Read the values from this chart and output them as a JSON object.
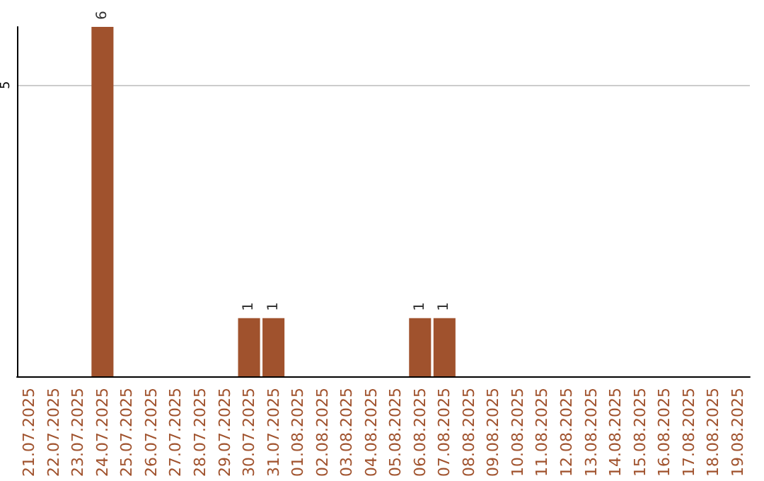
{
  "chart_data": {
    "type": "bar",
    "categories": [
      "21.07.2025",
      "22.07.2025",
      "23.07.2025",
      "24.07.2025",
      "25.07.2025",
      "26.07.2025",
      "27.07.2025",
      "28.07.2025",
      "29.07.2025",
      "30.07.2025",
      "31.07.2025",
      "01.08.2025",
      "02.08.2025",
      "03.08.2025",
      "04.08.2025",
      "05.08.2025",
      "06.08.2025",
      "07.08.2025",
      "08.08.2025",
      "09.08.2025",
      "10.08.2025",
      "11.08.2025",
      "12.08.2025",
      "13.08.2025",
      "14.08.2025",
      "15.08.2025",
      "16.08.2025",
      "17.08.2025",
      "18.08.2025",
      "19.08.2025"
    ],
    "values": [
      0,
      0,
      0,
      6,
      0,
      0,
      0,
      0,
      0,
      1,
      1,
      0,
      0,
      0,
      0,
      0,
      1,
      1,
      0,
      0,
      0,
      0,
      0,
      0,
      0,
      0,
      0,
      0,
      0,
      0
    ],
    "value_labels": [
      null,
      null,
      null,
      "6",
      null,
      null,
      null,
      null,
      null,
      "1",
      "1",
      null,
      null,
      null,
      null,
      null,
      "1",
      "1",
      null,
      null,
      null,
      null,
      null,
      null,
      null,
      null,
      null,
      null,
      null,
      null
    ],
    "color": "#a0522d",
    "ylim": [
      0,
      6
    ],
    "yticks": [
      5
    ],
    "grid": "y"
  }
}
